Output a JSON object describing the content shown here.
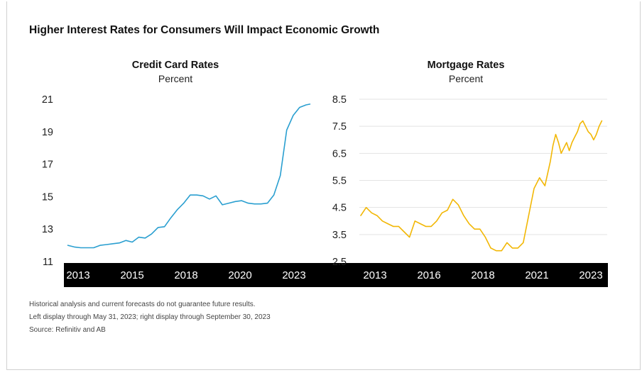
{
  "title": "Higher Interest Rates for Consumers Will Impact Economic Growth",
  "footnotes": [
    "Historical analysis and current forecasts do not guarantee future results.",
    "Left display through May 31, 2023; right display through September 30, 2023",
    "Source: Refinitiv and AB"
  ],
  "colors": {
    "credit": "#2a9fd0",
    "mortgage": "#f2b705",
    "axis_band": "#000000",
    "grid": "#e3e3e3"
  },
  "chart_data": [
    {
      "type": "line",
      "title": "Credit Card Rates",
      "subtitle": "Percent",
      "xlabel": "",
      "ylabel": "",
      "x_ticks": [
        "2013",
        "2015",
        "2018",
        "2020",
        "2023"
      ],
      "x_tick_positions": [
        2013.0,
        2015.0,
        2017.0,
        2019.0,
        2021.0
      ],
      "y_ticks": [
        "21",
        "19",
        "17",
        "15",
        "13",
        "11"
      ],
      "xlim": [
        2012.9,
        2022.5
      ],
      "ylim": [
        11,
        21
      ],
      "grid": false,
      "series": [
        {
          "x": [
            2013.0,
            2013.25,
            2013.5,
            2013.75,
            2014.0,
            2014.25,
            2014.5,
            2014.75,
            2015.0,
            2015.25,
            2015.5,
            2015.75,
            2016.0,
            2016.25,
            2016.5,
            2016.75,
            2017.0,
            2017.25,
            2017.5,
            2017.75,
            2018.0,
            2018.25,
            2018.5,
            2018.75,
            2019.0,
            2019.25,
            2019.5,
            2019.75,
            2020.0,
            2020.25,
            2020.5,
            2020.75,
            2021.0,
            2021.25,
            2021.5,
            2021.75,
            2022.0,
            2022.25,
            2022.4
          ],
          "values": [
            12.0,
            11.9,
            11.85,
            11.85,
            11.85,
            12.0,
            12.05,
            12.1,
            12.15,
            12.3,
            12.2,
            12.5,
            12.45,
            12.7,
            13.1,
            13.15,
            13.7,
            14.2,
            14.6,
            15.1,
            15.1,
            15.05,
            14.85,
            15.05,
            14.5,
            14.6,
            14.7,
            14.75,
            14.6,
            14.55,
            14.55,
            14.6,
            15.1,
            16.3,
            19.1,
            20.0,
            20.5,
            20.65,
            20.7
          ]
        }
      ]
    },
    {
      "type": "line",
      "title": "Mortgage Rates",
      "subtitle": "Percent",
      "xlabel": "",
      "ylabel": "",
      "x_ticks": [
        "2013",
        "2016",
        "2018",
        "2021",
        "2023"
      ],
      "x_tick_positions": [
        2013.0,
        2015.0,
        2017.0,
        2019.0,
        2021.0
      ],
      "y_ticks": [
        "8.5",
        "7.5",
        "6.5",
        "5.5",
        "4.5",
        "3.5",
        "2.5"
      ],
      "xlim": [
        2012.5,
        2021.6
      ],
      "ylim": [
        2.5,
        8.5
      ],
      "grid": true,
      "series": [
        {
          "x": [
            2012.5,
            2012.7,
            2012.9,
            2013.1,
            2013.3,
            2013.5,
            2013.7,
            2013.9,
            2014.1,
            2014.3,
            2014.5,
            2014.7,
            2014.9,
            2015.1,
            2015.3,
            2015.5,
            2015.7,
            2015.9,
            2016.1,
            2016.3,
            2016.5,
            2016.7,
            2016.9,
            2017.1,
            2017.3,
            2017.5,
            2017.7,
            2017.9,
            2018.1,
            2018.3,
            2018.5,
            2018.7,
            2018.9,
            2019.1,
            2019.3,
            2019.5,
            2019.6,
            2019.7,
            2019.8,
            2019.9,
            2020.0,
            2020.1,
            2020.2,
            2020.3,
            2020.4,
            2020.5,
            2020.6,
            2020.7,
            2020.8,
            2020.9,
            2021.0,
            2021.1,
            2021.2,
            2021.3,
            2021.4
          ],
          "values": [
            4.2,
            4.5,
            4.3,
            4.2,
            4.0,
            3.9,
            3.8,
            3.8,
            3.6,
            3.4,
            4.0,
            3.9,
            3.8,
            3.8,
            4.0,
            4.3,
            4.4,
            4.8,
            4.6,
            4.2,
            3.9,
            3.7,
            3.7,
            3.4,
            3.0,
            2.9,
            2.9,
            3.2,
            3.0,
            3.0,
            3.2,
            4.2,
            5.2,
            5.6,
            5.3,
            6.2,
            6.8,
            7.2,
            6.9,
            6.5,
            6.7,
            6.9,
            6.6,
            6.9,
            7.1,
            7.3,
            7.6,
            7.7,
            7.5,
            7.3,
            7.2,
            7.0,
            7.2,
            7.5,
            7.7
          ]
        }
      ]
    }
  ]
}
